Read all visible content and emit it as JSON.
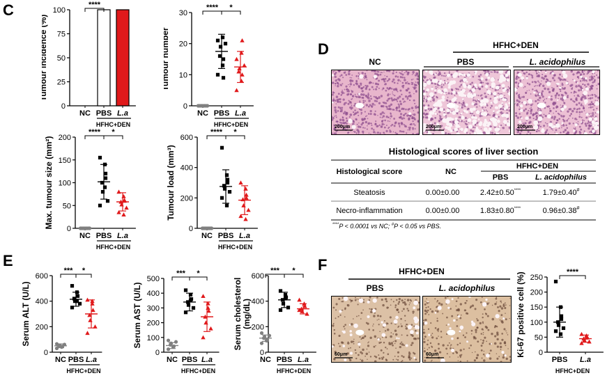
{
  "colors": {
    "pbs": "#000000",
    "la": "#e0191b",
    "nc": "#808080"
  },
  "panels": {
    "C": "C",
    "D": "D",
    "E": "E",
    "F": "F"
  },
  "group_label": "HFHC+DEN",
  "chart_data": [
    {
      "id": "c1",
      "type": "bar",
      "ylabel": "Tumour incidence (%)",
      "categories": [
        "NC",
        "PBS",
        "L.a"
      ],
      "values": [
        0,
        100,
        100
      ],
      "ylim": [
        0,
        100
      ],
      "yticks": [
        0,
        25,
        50,
        75,
        100
      ],
      "annotations": [
        {
          "from": 0,
          "to": 1,
          "text": "****"
        }
      ]
    },
    {
      "id": "c2",
      "type": "scatter",
      "ylabel": "Tumour number",
      "categories": [
        "NC",
        "PBS",
        "L.a"
      ],
      "ylim": [
        0,
        30
      ],
      "yticks": [
        0,
        10,
        20,
        30
      ],
      "series": [
        {
          "name": "NC",
          "mean": 0,
          "sd": 0,
          "points": [
            0,
            0,
            0,
            0,
            0,
            0,
            0
          ]
        },
        {
          "name": "PBS",
          "mean": 17.5,
          "sd": 5.5,
          "points": [
            10,
            13,
            15,
            16,
            19,
            20,
            21,
            22,
            9
          ]
        },
        {
          "name": "L.a",
          "mean": 12.5,
          "sd": 5,
          "points": [
            5,
            8,
            10,
            11,
            12,
            13,
            15,
            17,
            21
          ]
        }
      ],
      "annotations": [
        {
          "from": 0,
          "to": 1,
          "text": "****"
        },
        {
          "from": 1,
          "to": 2,
          "text": "*"
        }
      ]
    },
    {
      "id": "c3",
      "type": "scatter",
      "ylabel": "Max. tumour size (mm²)",
      "categories": [
        "NC",
        "PBS",
        "L.a"
      ],
      "ylim": [
        0,
        200
      ],
      "yticks": [
        0,
        50,
        100,
        150,
        200
      ],
      "series": [
        {
          "name": "NC",
          "mean": 0,
          "sd": 0,
          "points": [
            0,
            0,
            0,
            0,
            0,
            0,
            0
          ]
        },
        {
          "name": "PBS",
          "mean": 102,
          "sd": 38,
          "points": [
            155,
            140,
            110,
            100,
            80,
            60,
            50,
            90,
            120
          ]
        },
        {
          "name": "L.a",
          "mean": 58,
          "sd": 20,
          "points": [
            80,
            70,
            62,
            58,
            52,
            45,
            35,
            30,
            60
          ]
        }
      ],
      "annotations": [
        {
          "from": 0,
          "to": 1,
          "text": "****"
        },
        {
          "from": 1,
          "to": 2,
          "text": "*"
        }
      ]
    },
    {
      "id": "c4",
      "type": "scatter",
      "ylabel": "Tumour load (mm³)",
      "categories": [
        "NC",
        "PBS",
        "L.a"
      ],
      "ylim": [
        0,
        600
      ],
      "yticks": [
        0,
        200,
        400,
        600
      ],
      "series": [
        {
          "name": "NC",
          "mean": 0,
          "sd": 0,
          "points": [
            0,
            0,
            0,
            0,
            0,
            0,
            0
          ]
        },
        {
          "name": "PBS",
          "mean": 275,
          "sd": 110,
          "points": [
            530,
            350,
            300,
            280,
            260,
            240,
            200,
            150,
            320
          ]
        },
        {
          "name": "L.a",
          "mean": 185,
          "sd": 95,
          "points": [
            300,
            260,
            220,
            190,
            150,
            120,
            80,
            60,
            200
          ]
        }
      ],
      "annotations": [
        {
          "from": 0,
          "to": 1,
          "text": "****"
        },
        {
          "from": 1,
          "to": 2,
          "text": "*"
        }
      ]
    },
    {
      "id": "e1",
      "type": "scatter",
      "ylabel": "Serum ALT (U/L)",
      "categories": [
        "NC",
        "PBS",
        "L.a"
      ],
      "ylim": [
        0,
        600
      ],
      "yticks": [
        0,
        200,
        400,
        600
      ],
      "series": [
        {
          "name": "NC",
          "mean": 50,
          "sd": 15,
          "points": [
            30,
            40,
            45,
            50,
            55,
            60,
            65
          ]
        },
        {
          "name": "PBS",
          "mean": 415,
          "sd": 55,
          "points": [
            520,
            470,
            440,
            420,
            400,
            380,
            350,
            400
          ]
        },
        {
          "name": "L.a",
          "mean": 300,
          "sd": 110,
          "points": [
            410,
            400,
            330,
            290,
            250,
            200,
            150,
            380
          ]
        }
      ],
      "annotations": [
        {
          "from": 0,
          "to": 1,
          "text": "***"
        },
        {
          "from": 1,
          "to": 2,
          "text": "*"
        }
      ]
    },
    {
      "id": "e2",
      "type": "scatter",
      "ylabel": "Serum AST (U/L)",
      "categories": [
        "NC",
        "PBS",
        "L.a"
      ],
      "ylim": [
        0,
        500
      ],
      "yticks": [
        0,
        100,
        200,
        300,
        400,
        500
      ],
      "series": [
        {
          "name": "NC",
          "mean": 45,
          "sd": 20,
          "points": [
            20,
            35,
            40,
            50,
            60,
            70,
            80
          ]
        },
        {
          "name": "PBS",
          "mean": 340,
          "sd": 60,
          "points": [
            420,
            390,
            360,
            340,
            320,
            300,
            270,
            350
          ]
        },
        {
          "name": "L.a",
          "mean": 240,
          "sd": 100,
          "points": [
            380,
            330,
            280,
            240,
            200,
            160,
            100,
            300
          ]
        }
      ],
      "annotations": [
        {
          "from": 0,
          "to": 1,
          "text": "***"
        },
        {
          "from": 1,
          "to": 2,
          "text": "*"
        }
      ]
    },
    {
      "id": "e3",
      "type": "scatter",
      "ylabel": "Serum cholesterol\n(mg/dL)",
      "categories": [
        "NC",
        "PBS",
        "L.a"
      ],
      "ylim": [
        0,
        600
      ],
      "yticks": [
        0,
        200,
        400,
        600
      ],
      "series": [
        {
          "name": "NC",
          "mean": 110,
          "sd": 25,
          "points": [
            70,
            90,
            100,
            110,
            120,
            130,
            150
          ]
        },
        {
          "name": "PBS",
          "mean": 410,
          "sd": 60,
          "points": [
            480,
            450,
            430,
            410,
            380,
            350,
            330,
            420
          ]
        },
        {
          "name": "L.a",
          "mean": 340,
          "sd": 40,
          "points": [
            410,
            380,
            360,
            340,
            320,
            300,
            330
          ]
        }
      ],
      "annotations": [
        {
          "from": 0,
          "to": 1,
          "text": "***"
        },
        {
          "from": 1,
          "to": 2,
          "text": "*"
        }
      ]
    },
    {
      "id": "f1",
      "type": "scatter",
      "ylabel": "Ki-67 positive cell (%)",
      "categories": [
        "PBS",
        "L.a"
      ],
      "ylim": [
        0,
        250
      ],
      "yticks": [
        0,
        50,
        100,
        150,
        200,
        250
      ],
      "series": [
        {
          "name": "PBS",
          "mean": 100,
          "sd": 50,
          "points": [
            235,
            150,
            120,
            100,
            90,
            80,
            70,
            60,
            110
          ]
        },
        {
          "name": "L.a",
          "mean": 45,
          "sd": 12,
          "points": [
            60,
            55,
            50,
            45,
            40,
            35,
            30,
            48
          ]
        }
      ],
      "annotations": [
        {
          "from": 0,
          "to": 1,
          "text": "****"
        }
      ]
    }
  ],
  "histology": {
    "labels": {
      "nc": "NC",
      "pbs": "PBS",
      "la": "L. acidophilus"
    },
    "scalebar_d": "200μm",
    "scalebar_f": "60μm"
  },
  "table": {
    "title": "Histological scores of liver section",
    "col_score": "Histological score",
    "col_nc": "NC",
    "col_group": "HFHC+DEN",
    "col_pbs": "PBS",
    "col_la": "L. acidophilus",
    "rows": [
      {
        "name": "Steatosis",
        "nc": "0.00±0.00",
        "pbs": "2.42±0.50",
        "pbs_sig": "****",
        "la": "1.79±0.40",
        "la_sig": "#"
      },
      {
        "name": "Necro-inflammation",
        "nc": "0.00±0.00",
        "pbs": "1.83±0.80",
        "pbs_sig": "****",
        "la": "0.96±0.38",
        "la_sig": "#"
      }
    ],
    "footnote_a": "****",
    "footnote_b": "P < 0.0001 vs NC; ",
    "footnote_c": "#",
    "footnote_d": "P < 0.05 vs PBS."
  }
}
